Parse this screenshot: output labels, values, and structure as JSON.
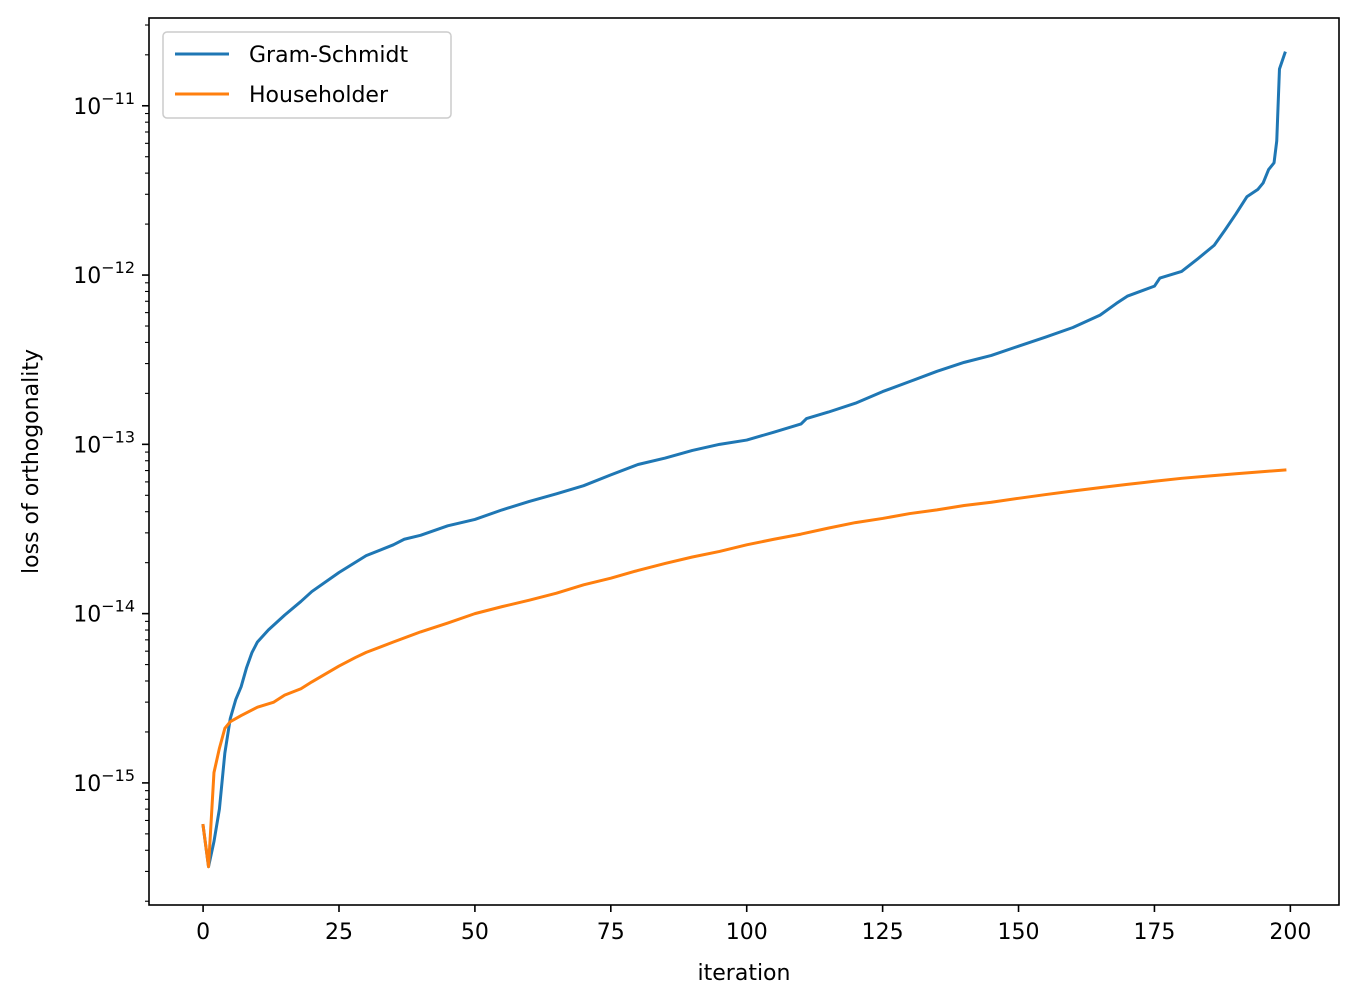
{
  "chart_data": {
    "type": "line",
    "xlabel": "iteration",
    "ylabel": "loss of orthogonality",
    "yscale": "log",
    "xlim": [
      -9.95,
      208.95
    ],
    "ylim": [
      1.9e-16,
      3.3e-11
    ],
    "xticks": [
      0,
      25,
      50,
      75,
      100,
      125,
      150,
      175,
      200
    ],
    "xtick_labels": [
      "0",
      "25",
      "50",
      "75",
      "100",
      "125",
      "150",
      "175",
      "200"
    ],
    "yticks": [
      1e-15,
      1e-14,
      1e-13,
      1e-12,
      1e-11
    ],
    "ytick_labels": [
      {
        "base": "10",
        "exp": "−15"
      },
      {
        "base": "10",
        "exp": "−14"
      },
      {
        "base": "10",
        "exp": "−13"
      },
      {
        "base": "10",
        "exp": "−12"
      },
      {
        "base": "10",
        "exp": "−11"
      }
    ],
    "grid": false,
    "legend_position": "top-left",
    "series": [
      {
        "name": "Gram-Schmidt",
        "color": "#1f77b4",
        "points": [
          [
            0,
            5.6e-16
          ],
          [
            1,
            3.2e-16
          ],
          [
            2,
            4.5e-16
          ],
          [
            3,
            7e-16
          ],
          [
            4,
            1.5e-15
          ],
          [
            5,
            2.4e-15
          ],
          [
            6,
            3.1e-15
          ],
          [
            7,
            3.7e-15
          ],
          [
            8,
            4.8e-15
          ],
          [
            9,
            5.9e-15
          ],
          [
            10,
            6.8e-15
          ],
          [
            12,
            8e-15
          ],
          [
            15,
            9.8e-15
          ],
          [
            18,
            1.18e-14
          ],
          [
            20,
            1.35e-14
          ],
          [
            25,
            1.75e-14
          ],
          [
            30,
            2.2e-14
          ],
          [
            35,
            2.55e-14
          ],
          [
            37,
            2.75e-14
          ],
          [
            40,
            2.9e-14
          ],
          [
            45,
            3.3e-14
          ],
          [
            50,
            3.6e-14
          ],
          [
            55,
            4.1e-14
          ],
          [
            60,
            4.6e-14
          ],
          [
            65,
            5.1e-14
          ],
          [
            70,
            5.7e-14
          ],
          [
            75,
            6.6e-14
          ],
          [
            80,
            7.6e-14
          ],
          [
            85,
            8.3e-14
          ],
          [
            90,
            9.2e-14
          ],
          [
            95,
            1e-13
          ],
          [
            100,
            1.06e-13
          ],
          [
            105,
            1.18e-13
          ],
          [
            110,
            1.32e-13
          ],
          [
            111,
            1.42e-13
          ],
          [
            115,
            1.55e-13
          ],
          [
            120,
            1.75e-13
          ],
          [
            125,
            2.05e-13
          ],
          [
            130,
            2.35e-13
          ],
          [
            135,
            2.7e-13
          ],
          [
            140,
            3.05e-13
          ],
          [
            145,
            3.35e-13
          ],
          [
            150,
            3.8e-13
          ],
          [
            155,
            4.3e-13
          ],
          [
            160,
            4.9e-13
          ],
          [
            165,
            5.8e-13
          ],
          [
            168,
            6.8e-13
          ],
          [
            170,
            7.5e-13
          ],
          [
            175,
            8.6e-13
          ],
          [
            176,
            9.6e-13
          ],
          [
            180,
            1.05e-12
          ],
          [
            183,
            1.25e-12
          ],
          [
            186,
            1.5e-12
          ],
          [
            188,
            1.85e-12
          ],
          [
            190,
            2.3e-12
          ],
          [
            192,
            2.9e-12
          ],
          [
            194,
            3.2e-12
          ],
          [
            195,
            3.5e-12
          ],
          [
            196,
            4.2e-12
          ],
          [
            197,
            4.6e-12
          ],
          [
            197.5,
            6.2e-12
          ],
          [
            198,
            1.65e-11
          ],
          [
            199,
            2.05e-11
          ]
        ]
      },
      {
        "name": "Householder",
        "color": "#ff7f0e",
        "points": [
          [
            0,
            5.6e-16
          ],
          [
            1,
            3.2e-16
          ],
          [
            2,
            1.15e-15
          ],
          [
            3,
            1.6e-15
          ],
          [
            4,
            2.1e-15
          ],
          [
            5,
            2.3e-15
          ],
          [
            7,
            2.5e-15
          ],
          [
            10,
            2.8e-15
          ],
          [
            13,
            3e-15
          ],
          [
            15,
            3.3e-15
          ],
          [
            18,
            3.6e-15
          ],
          [
            20,
            3.95e-15
          ],
          [
            25,
            4.9e-15
          ],
          [
            28,
            5.5e-15
          ],
          [
            30,
            5.9e-15
          ],
          [
            35,
            6.8e-15
          ],
          [
            40,
            7.8e-15
          ],
          [
            45,
            8.8e-15
          ],
          [
            50,
            1e-14
          ],
          [
            55,
            1.1e-14
          ],
          [
            60,
            1.2e-14
          ],
          [
            65,
            1.32e-14
          ],
          [
            70,
            1.48e-14
          ],
          [
            75,
            1.62e-14
          ],
          [
            80,
            1.8e-14
          ],
          [
            85,
            1.98e-14
          ],
          [
            90,
            2.16e-14
          ],
          [
            95,
            2.33e-14
          ],
          [
            100,
            2.55e-14
          ],
          [
            105,
            2.75e-14
          ],
          [
            110,
            2.95e-14
          ],
          [
            115,
            3.2e-14
          ],
          [
            120,
            3.45e-14
          ],
          [
            125,
            3.65e-14
          ],
          [
            130,
            3.9e-14
          ],
          [
            135,
            4.1e-14
          ],
          [
            140,
            4.35e-14
          ],
          [
            145,
            4.55e-14
          ],
          [
            150,
            4.8e-14
          ],
          [
            155,
            5.05e-14
          ],
          [
            160,
            5.3e-14
          ],
          [
            165,
            5.55e-14
          ],
          [
            170,
            5.8e-14
          ],
          [
            175,
            6.05e-14
          ],
          [
            180,
            6.3e-14
          ],
          [
            185,
            6.5e-14
          ],
          [
            190,
            6.7e-14
          ],
          [
            195,
            6.9e-14
          ],
          [
            199,
            7.05e-14
          ]
        ]
      }
    ]
  }
}
